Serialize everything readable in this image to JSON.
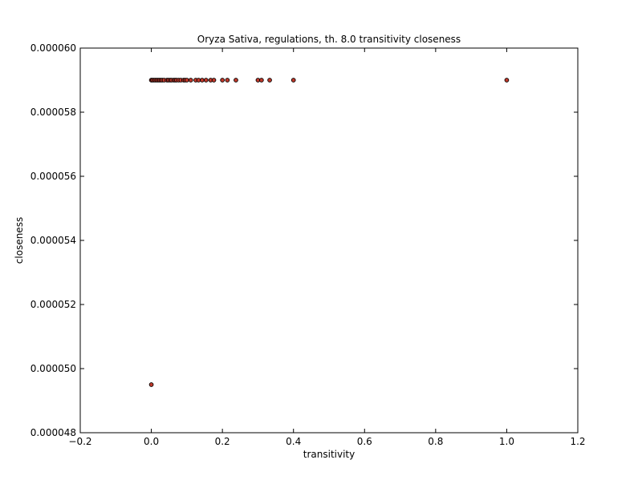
{
  "chart_data": {
    "type": "scatter",
    "title": "Oryza Sativa, regulations, th. 8.0 transitivity closeness",
    "xlabel": "transitivity",
    "ylabel": "closeness",
    "xlim": [
      -0.2,
      1.2
    ],
    "ylim": [
      4.8e-05,
      6e-05
    ],
    "x_ticks": [
      -0.2,
      0.0,
      0.2,
      0.4,
      0.6,
      0.8,
      1.0,
      1.2
    ],
    "x_tick_labels": [
      "−0.2",
      "0.0",
      "0.2",
      "0.4",
      "0.6",
      "0.8",
      "1.0",
      "1.2"
    ],
    "y_ticks": [
      4.8e-05,
      5e-05,
      5.2e-05,
      5.4e-05,
      5.6e-05,
      5.8e-05,
      6e-05
    ],
    "y_tick_labels": [
      "0.000048",
      "0.000050",
      "0.000052",
      "0.000054",
      "0.000056",
      "0.000058",
      "0.000060"
    ],
    "grid": false,
    "marker_color": "#c0392b",
    "marker_edge_color": "#000000",
    "points": [
      {
        "x": 0.0,
        "y": 4.95e-05
      },
      {
        "x": 0.0,
        "y": 5.9e-05
      },
      {
        "x": 0.003,
        "y": 5.9e-05
      },
      {
        "x": 0.007,
        "y": 5.9e-05
      },
      {
        "x": 0.011,
        "y": 5.9e-05
      },
      {
        "x": 0.015,
        "y": 5.9e-05
      },
      {
        "x": 0.019,
        "y": 5.9e-05
      },
      {
        "x": 0.023,
        "y": 5.9e-05
      },
      {
        "x": 0.027,
        "y": 5.9e-05
      },
      {
        "x": 0.031,
        "y": 5.9e-05
      },
      {
        "x": 0.036,
        "y": 5.9e-05
      },
      {
        "x": 0.044,
        "y": 5.9e-05
      },
      {
        "x": 0.048,
        "y": 5.9e-05
      },
      {
        "x": 0.053,
        "y": 5.9e-05
      },
      {
        "x": 0.057,
        "y": 5.9e-05
      },
      {
        "x": 0.063,
        "y": 5.9e-05
      },
      {
        "x": 0.067,
        "y": 5.9e-05
      },
      {
        "x": 0.071,
        "y": 5.9e-05
      },
      {
        "x": 0.077,
        "y": 5.9e-05
      },
      {
        "x": 0.083,
        "y": 5.9e-05
      },
      {
        "x": 0.091,
        "y": 5.9e-05
      },
      {
        "x": 0.095,
        "y": 5.9e-05
      },
      {
        "x": 0.1,
        "y": 5.9e-05
      },
      {
        "x": 0.111,
        "y": 5.9e-05
      },
      {
        "x": 0.125,
        "y": 5.9e-05
      },
      {
        "x": 0.133,
        "y": 5.9e-05
      },
      {
        "x": 0.143,
        "y": 5.9e-05
      },
      {
        "x": 0.154,
        "y": 5.9e-05
      },
      {
        "x": 0.167,
        "y": 5.9e-05
      },
      {
        "x": 0.176,
        "y": 5.9e-05
      },
      {
        "x": 0.2,
        "y": 5.9e-05
      },
      {
        "x": 0.214,
        "y": 5.9e-05
      },
      {
        "x": 0.238,
        "y": 5.9e-05
      },
      {
        "x": 0.3,
        "y": 5.9e-05
      },
      {
        "x": 0.31,
        "y": 5.9e-05
      },
      {
        "x": 0.333,
        "y": 5.9e-05
      },
      {
        "x": 0.4,
        "y": 5.9e-05
      },
      {
        "x": 1.0,
        "y": 5.9e-05
      }
    ]
  }
}
